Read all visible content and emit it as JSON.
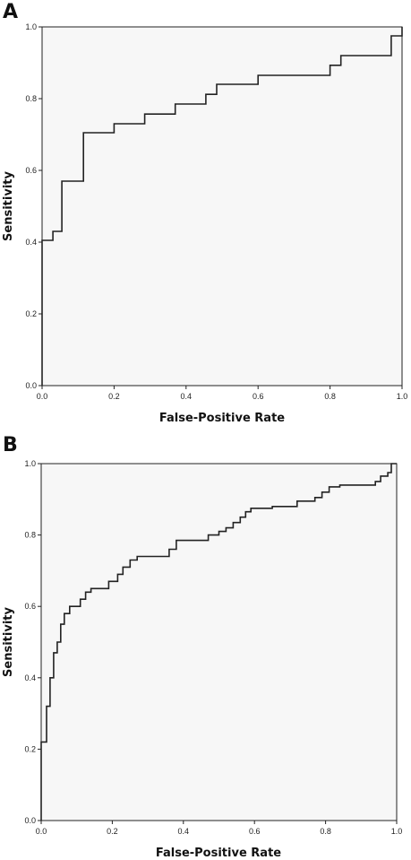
{
  "chart_data": [
    {
      "panel_label": "A",
      "type": "line",
      "step": true,
      "xlabel": "False-Positive Rate",
      "ylabel": "Sensitivity",
      "xlim": [
        0,
        1
      ],
      "ylim": [
        0,
        1
      ],
      "xticks": [
        "0.0",
        "0.2",
        "0.4",
        "0.6",
        "0.8",
        "1.0"
      ],
      "yticks": [
        "0.0",
        "0.2",
        "0.4",
        "0.6",
        "0.8",
        "1.0"
      ],
      "grid": false,
      "points": [
        [
          0,
          0
        ],
        [
          0,
          0.405
        ],
        [
          0.03,
          0.405
        ],
        [
          0.03,
          0.43
        ],
        [
          0.055,
          0.43
        ],
        [
          0.055,
          0.57
        ],
        [
          0.115,
          0.57
        ],
        [
          0.115,
          0.705
        ],
        [
          0.2,
          0.705
        ],
        [
          0.2,
          0.73
        ],
        [
          0.285,
          0.73
        ],
        [
          0.285,
          0.757
        ],
        [
          0.37,
          0.757
        ],
        [
          0.37,
          0.785
        ],
        [
          0.455,
          0.785
        ],
        [
          0.455,
          0.812
        ],
        [
          0.485,
          0.812
        ],
        [
          0.485,
          0.84
        ],
        [
          0.6,
          0.84
        ],
        [
          0.6,
          0.865
        ],
        [
          0.8,
          0.865
        ],
        [
          0.8,
          0.893
        ],
        [
          0.83,
          0.893
        ],
        [
          0.83,
          0.92
        ],
        [
          0.97,
          0.92
        ],
        [
          0.97,
          0.975
        ],
        [
          1.0,
          0.975
        ],
        [
          1.0,
          1.0
        ]
      ]
    },
    {
      "panel_label": "B",
      "type": "line",
      "step": true,
      "xlabel": "False-Positive Rate",
      "ylabel": "Sensitivity",
      "xlim": [
        0,
        1
      ],
      "ylim": [
        0,
        1
      ],
      "xticks": [
        "0.0",
        "0.2",
        "0.4",
        "0.6",
        "0.8",
        "1.0"
      ],
      "yticks": [
        "0.0",
        "0.2",
        "0.4",
        "0.6",
        "0.8",
        "1.0"
      ],
      "grid": false,
      "points": [
        [
          0,
          0
        ],
        [
          0,
          0.22
        ],
        [
          0.015,
          0.22
        ],
        [
          0.015,
          0.32
        ],
        [
          0.025,
          0.32
        ],
        [
          0.025,
          0.4
        ],
        [
          0.035,
          0.4
        ],
        [
          0.035,
          0.47
        ],
        [
          0.045,
          0.47
        ],
        [
          0.045,
          0.5
        ],
        [
          0.055,
          0.5
        ],
        [
          0.055,
          0.55
        ],
        [
          0.065,
          0.55
        ],
        [
          0.065,
          0.58
        ],
        [
          0.08,
          0.58
        ],
        [
          0.08,
          0.6
        ],
        [
          0.11,
          0.6
        ],
        [
          0.11,
          0.62
        ],
        [
          0.125,
          0.62
        ],
        [
          0.125,
          0.64
        ],
        [
          0.14,
          0.64
        ],
        [
          0.14,
          0.65
        ],
        [
          0.19,
          0.65
        ],
        [
          0.19,
          0.67
        ],
        [
          0.215,
          0.67
        ],
        [
          0.215,
          0.69
        ],
        [
          0.23,
          0.69
        ],
        [
          0.23,
          0.71
        ],
        [
          0.25,
          0.71
        ],
        [
          0.25,
          0.73
        ],
        [
          0.27,
          0.73
        ],
        [
          0.27,
          0.74
        ],
        [
          0.36,
          0.74
        ],
        [
          0.36,
          0.76
        ],
        [
          0.38,
          0.76
        ],
        [
          0.38,
          0.785
        ],
        [
          0.47,
          0.785
        ],
        [
          0.47,
          0.8
        ],
        [
          0.5,
          0.8
        ],
        [
          0.5,
          0.81
        ],
        [
          0.52,
          0.81
        ],
        [
          0.52,
          0.82
        ],
        [
          0.54,
          0.82
        ],
        [
          0.54,
          0.835
        ],
        [
          0.56,
          0.835
        ],
        [
          0.56,
          0.85
        ],
        [
          0.575,
          0.85
        ],
        [
          0.575,
          0.865
        ],
        [
          0.59,
          0.865
        ],
        [
          0.59,
          0.875
        ],
        [
          0.65,
          0.875
        ],
        [
          0.65,
          0.88
        ],
        [
          0.72,
          0.88
        ],
        [
          0.72,
          0.895
        ],
        [
          0.77,
          0.895
        ],
        [
          0.77,
          0.905
        ],
        [
          0.79,
          0.905
        ],
        [
          0.79,
          0.92
        ],
        [
          0.81,
          0.92
        ],
        [
          0.81,
          0.935
        ],
        [
          0.84,
          0.935
        ],
        [
          0.84,
          0.94
        ],
        [
          0.94,
          0.94
        ],
        [
          0.94,
          0.95
        ],
        [
          0.955,
          0.95
        ],
        [
          0.955,
          0.965
        ],
        [
          0.975,
          0.965
        ],
        [
          0.975,
          0.975
        ],
        [
          0.985,
          0.975
        ],
        [
          0.985,
          1.0
        ],
        [
          1.0,
          1.0
        ]
      ]
    }
  ]
}
